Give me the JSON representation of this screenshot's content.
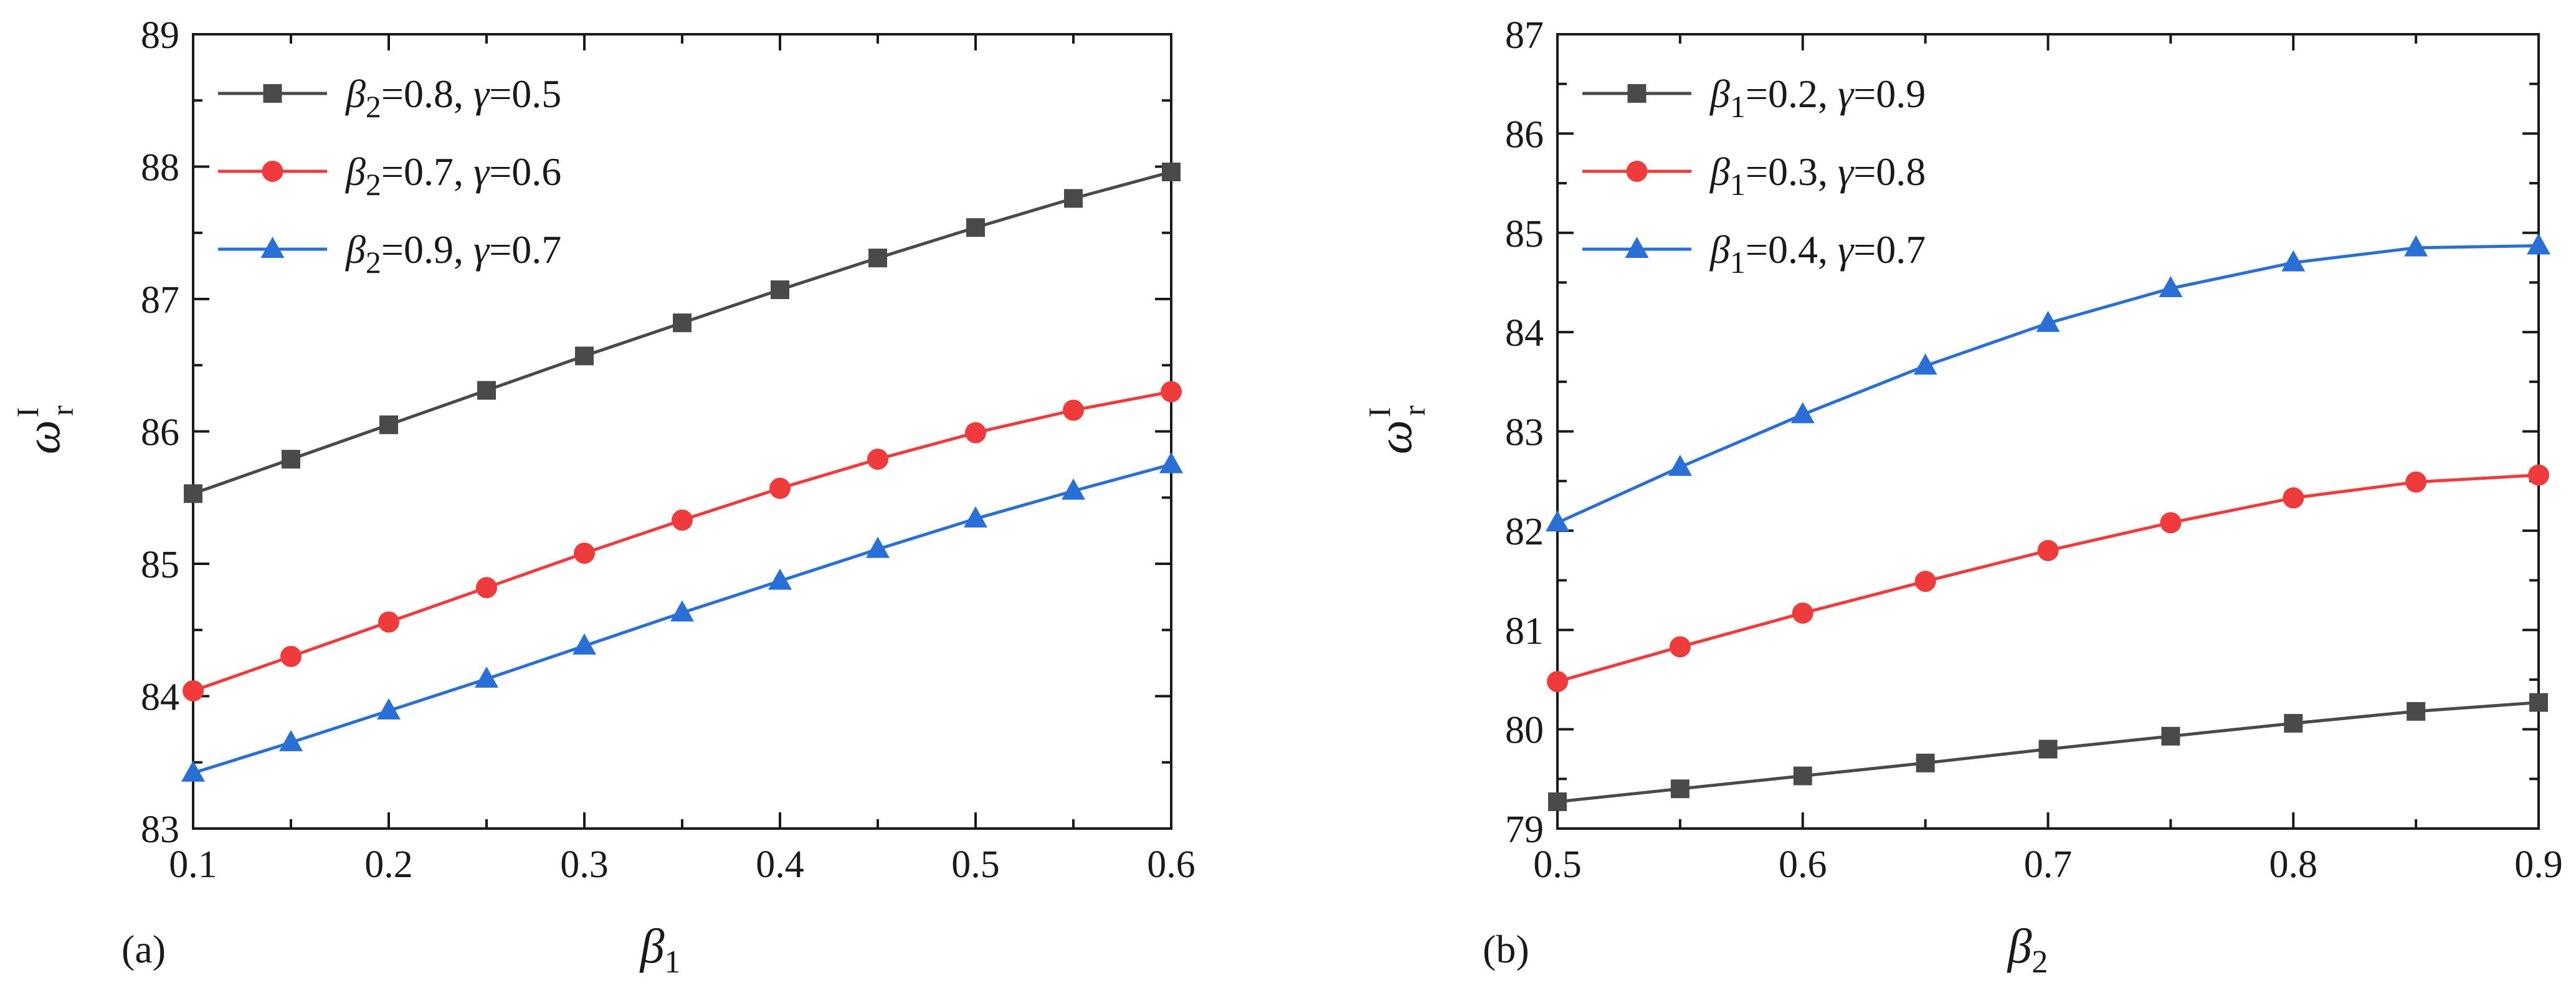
{
  "colors": {
    "black_series": "#4a4a4a",
    "red_series": "#ef3b3b",
    "blue_series": "#2a6fd6",
    "axis": "#1a1a1a"
  },
  "chart_data": [
    {
      "panel": "(a)",
      "type": "line",
      "xlabel": {
        "symbol": "β",
        "sub": "1"
      },
      "ylabel": {
        "symbol": "ω",
        "sup": "I",
        "sub": "r"
      },
      "xlim": [
        0.1,
        0.6
      ],
      "ylim": [
        83,
        89
      ],
      "xticks": [
        "0.1",
        "0.2",
        "0.3",
        "0.4",
        "0.5",
        "0.6"
      ],
      "yticks": [
        "83",
        "84",
        "85",
        "86",
        "87",
        "88",
        "89"
      ],
      "x": [
        0.1,
        0.15,
        0.2,
        0.25,
        0.3,
        0.35,
        0.4,
        0.45,
        0.5,
        0.55,
        0.6
      ],
      "legend_position": "top-left",
      "series": [
        {
          "legend": {
            "sym": "β",
            "sub": "2",
            "rest": "=0.8, ",
            "sym2": "γ",
            "rest2": "=0.5"
          },
          "marker": "square",
          "color": "#4a4a4a",
          "values": [
            85.53,
            85.79,
            86.05,
            86.31,
            86.57,
            86.82,
            87.07,
            87.31,
            87.54,
            87.76,
            87.96
          ]
        },
        {
          "legend": {
            "sym": "β",
            "sub": "2",
            "rest": "=0.7, ",
            "sym2": "γ",
            "rest2": "=0.6"
          },
          "marker": "circle",
          "color": "#ef3b3b",
          "values": [
            84.04,
            84.3,
            84.56,
            84.82,
            85.08,
            85.33,
            85.57,
            85.79,
            85.99,
            86.16,
            86.3
          ]
        },
        {
          "legend": {
            "sym": "β",
            "sub": "2",
            "rest": "=0.9, ",
            "sym2": "γ",
            "rest2": "=0.7"
          },
          "marker": "triangle",
          "color": "#2a6fd6",
          "values": [
            83.42,
            83.65,
            83.89,
            84.13,
            84.38,
            84.63,
            84.87,
            85.11,
            85.34,
            85.55,
            85.75
          ]
        }
      ]
    },
    {
      "panel": "(b)",
      "type": "line",
      "xlabel": {
        "symbol": "β",
        "sub": "2"
      },
      "ylabel": {
        "symbol": "ω",
        "sup": "I",
        "sub": "r"
      },
      "xlim": [
        0.5,
        0.9
      ],
      "ylim": [
        79,
        87
      ],
      "xticks": [
        "0.5",
        "0.6",
        "0.7",
        "0.8",
        "0.9"
      ],
      "yticks": [
        "79",
        "80",
        "81",
        "82",
        "83",
        "84",
        "85",
        "86",
        "87"
      ],
      "x": [
        0.5,
        0.55,
        0.6,
        0.65,
        0.7,
        0.75,
        0.8,
        0.85,
        0.9
      ],
      "legend_position": "top-left",
      "series": [
        {
          "legend": {
            "sym": "β",
            "sub": "1",
            "rest": "=0.2, ",
            "sym2": "γ",
            "rest2": "=0.9"
          },
          "marker": "square",
          "color": "#4a4a4a",
          "values": [
            79.27,
            79.4,
            79.53,
            79.66,
            79.8,
            79.93,
            80.06,
            80.18,
            80.27
          ]
        },
        {
          "legend": {
            "sym": "β",
            "sub": "1",
            "rest": "=0.3, ",
            "sym2": "γ",
            "rest2": "=0.8"
          },
          "marker": "circle",
          "color": "#ef3b3b",
          "values": [
            80.48,
            80.83,
            81.17,
            81.49,
            81.8,
            82.08,
            82.33,
            82.49,
            82.56
          ]
        },
        {
          "legend": {
            "sym": "β",
            "sub": "1",
            "rest": "=0.4, ",
            "sym2": "γ",
            "rest2": "=0.7"
          },
          "marker": "triangle",
          "color": "#2a6fd6",
          "values": [
            82.08,
            82.64,
            83.17,
            83.66,
            84.09,
            84.44,
            84.7,
            84.85,
            84.87
          ]
        }
      ]
    }
  ]
}
